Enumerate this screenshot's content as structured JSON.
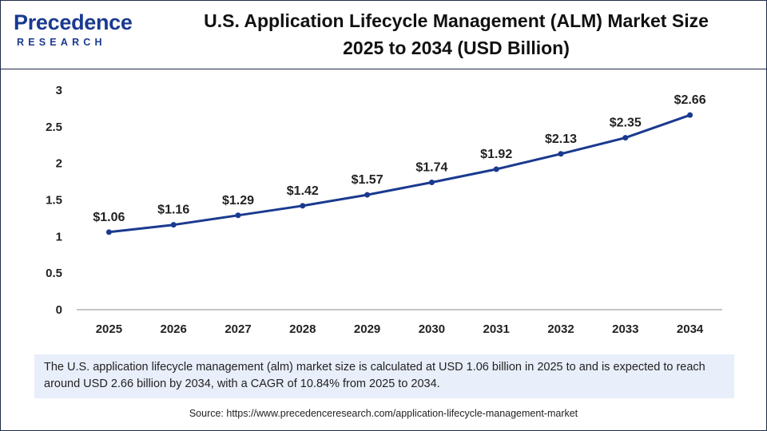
{
  "header": {
    "logo_name": "Precedence",
    "logo_sub": "RESEARCH",
    "title_line1": "U.S. Application Lifecycle Management (ALM) Market Size",
    "title_line2": "2025 to 2034 (USD Billion)"
  },
  "colors": {
    "line": "#1a3a8f",
    "point": "#1a3a8f",
    "axis": "#888888",
    "summary_bg": "#e8eefa"
  },
  "chart_data": {
    "type": "line",
    "title": "U.S. Application Lifecycle Management (ALM) Market Size 2025 to 2034 (USD Billion)",
    "xlabel": "",
    "ylabel": "",
    "grid": false,
    "x": [
      "2025",
      "2026",
      "2027",
      "2028",
      "2029",
      "2030",
      "2031",
      "2032",
      "2033",
      "2034"
    ],
    "values": [
      1.06,
      1.16,
      1.29,
      1.42,
      1.57,
      1.74,
      1.92,
      2.13,
      2.35,
      2.66
    ],
    "data_labels": [
      "$1.06",
      "$1.16",
      "$1.29",
      "$1.42",
      "$1.57",
      "$1.74",
      "$1.92",
      "$2.13",
      "$2.35",
      "$2.66"
    ],
    "y_ticks": [
      0,
      0.5,
      1,
      1.5,
      2,
      2.5,
      3
    ],
    "y_tick_labels": [
      "0",
      "0.5",
      "1",
      "1.5",
      "2",
      "2.5",
      "3"
    ],
    "ylim": [
      0,
      3
    ]
  },
  "summary": {
    "text": "The U.S. application lifecycle management (alm) market size is calculated at USD 1.06 billion in 2025 to and is expected to reach around USD 2.66 billion by 2034, with a CAGR of 10.84% from 2025 to 2034."
  },
  "source": {
    "text": "Source: https://www.precedenceresearch.com/application-lifecycle-management-market"
  }
}
